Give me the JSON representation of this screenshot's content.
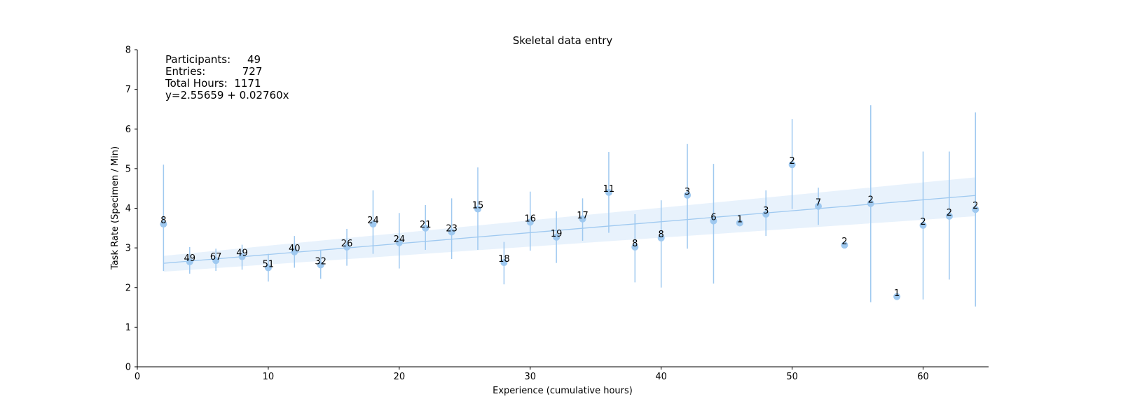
{
  "chart_data": {
    "type": "scatter",
    "title": "Skeletal data entry",
    "xlabel": "Experience (cumulative hours)",
    "ylabel": "Task Rate (Specimen / Min)",
    "xlim": [
      0,
      65
    ],
    "ylim": [
      0,
      8
    ],
    "xticks": [
      0,
      10,
      20,
      30,
      40,
      50,
      60
    ],
    "yticks": [
      0,
      1,
      2,
      3,
      4,
      5,
      6,
      7,
      8
    ],
    "grid": false,
    "colors": {
      "points": "#9fc9f0",
      "errorbars": "#9fc9f0",
      "fit_line": "#9fc9f0",
      "confidence_band": "#e8f2fc",
      "axes": "#000000"
    },
    "stats_lines": [
      "Participants:     49",
      "Entries:           727",
      "Total Hours:  1171",
      "y=2.55659 + 0.02760x"
    ],
    "fit": {
      "intercept": 2.55659,
      "slope": 0.0276,
      "x_range": [
        2,
        64
      ],
      "band_lower": [
        2.4,
        3.8
      ],
      "band_upper": [
        2.8,
        4.78
      ]
    },
    "points": [
      {
        "x": 2,
        "y": 3.6,
        "err_low": 2.42,
        "err_high": 5.1,
        "label": "8"
      },
      {
        "x": 4,
        "y": 2.65,
        "err_low": 2.35,
        "err_high": 3.02,
        "label": "49"
      },
      {
        "x": 6,
        "y": 2.68,
        "err_low": 2.42,
        "err_high": 2.98,
        "label": "67"
      },
      {
        "x": 8,
        "y": 2.78,
        "err_low": 2.45,
        "err_high": 3.08,
        "label": "49"
      },
      {
        "x": 10,
        "y": 2.5,
        "err_low": 2.15,
        "err_high": 2.85,
        "label": "51"
      },
      {
        "x": 12,
        "y": 2.9,
        "err_low": 2.5,
        "err_high": 3.3,
        "label": "40"
      },
      {
        "x": 14,
        "y": 2.57,
        "err_low": 2.22,
        "err_high": 2.95,
        "label": "32"
      },
      {
        "x": 16,
        "y": 3.02,
        "err_low": 2.55,
        "err_high": 3.48,
        "label": "26"
      },
      {
        "x": 18,
        "y": 3.6,
        "err_low": 2.85,
        "err_high": 4.45,
        "label": "24"
      },
      {
        "x": 20,
        "y": 3.13,
        "err_low": 2.48,
        "err_high": 3.88,
        "label": "24"
      },
      {
        "x": 22,
        "y": 3.5,
        "err_low": 2.95,
        "err_high": 4.08,
        "label": "21"
      },
      {
        "x": 24,
        "y": 3.4,
        "err_low": 2.72,
        "err_high": 4.25,
        "label": "23"
      },
      {
        "x": 26,
        "y": 3.98,
        "err_low": 2.95,
        "err_high": 5.03,
        "label": "15"
      },
      {
        "x": 28,
        "y": 2.63,
        "err_low": 2.08,
        "err_high": 3.15,
        "label": "18"
      },
      {
        "x": 30,
        "y": 3.65,
        "err_low": 2.93,
        "err_high": 4.42,
        "label": "16"
      },
      {
        "x": 32,
        "y": 3.27,
        "err_low": 2.62,
        "err_high": 3.92,
        "label": "19"
      },
      {
        "x": 34,
        "y": 3.73,
        "err_low": 3.18,
        "err_high": 4.25,
        "label": "17"
      },
      {
        "x": 36,
        "y": 4.4,
        "err_low": 3.38,
        "err_high": 5.42,
        "label": "11"
      },
      {
        "x": 38,
        "y": 3.02,
        "err_low": 2.13,
        "err_high": 3.85,
        "label": "8"
      },
      {
        "x": 40,
        "y": 3.25,
        "err_low": 2.0,
        "err_high": 4.2,
        "label": "8"
      },
      {
        "x": 42,
        "y": 4.33,
        "err_low": 2.98,
        "err_high": 5.62,
        "label": "3"
      },
      {
        "x": 44,
        "y": 3.68,
        "err_low": 2.1,
        "err_high": 5.12,
        "label": "6"
      },
      {
        "x": 46,
        "y": 3.63,
        "err_low": null,
        "err_high": null,
        "label": "1"
      },
      {
        "x": 48,
        "y": 3.85,
        "err_low": 3.3,
        "err_high": 4.45,
        "label": "3"
      },
      {
        "x": 50,
        "y": 5.1,
        "err_low": 3.98,
        "err_high": 6.25,
        "label": "2"
      },
      {
        "x": 52,
        "y": 4.05,
        "err_low": 3.58,
        "err_high": 4.52,
        "label": "7"
      },
      {
        "x": 54,
        "y": 3.07,
        "err_low": null,
        "err_high": null,
        "label": "2"
      },
      {
        "x": 56,
        "y": 4.12,
        "err_low": 1.63,
        "err_high": 6.6,
        "label": "2"
      },
      {
        "x": 58,
        "y": 1.77,
        "err_low": null,
        "err_high": null,
        "label": "1"
      },
      {
        "x": 60,
        "y": 3.57,
        "err_low": 1.7,
        "err_high": 5.43,
        "label": "2"
      },
      {
        "x": 62,
        "y": 3.8,
        "err_low": 2.2,
        "err_high": 5.43,
        "label": "2"
      },
      {
        "x": 64,
        "y": 3.97,
        "err_low": 1.52,
        "err_high": 6.42,
        "label": "2"
      }
    ]
  }
}
